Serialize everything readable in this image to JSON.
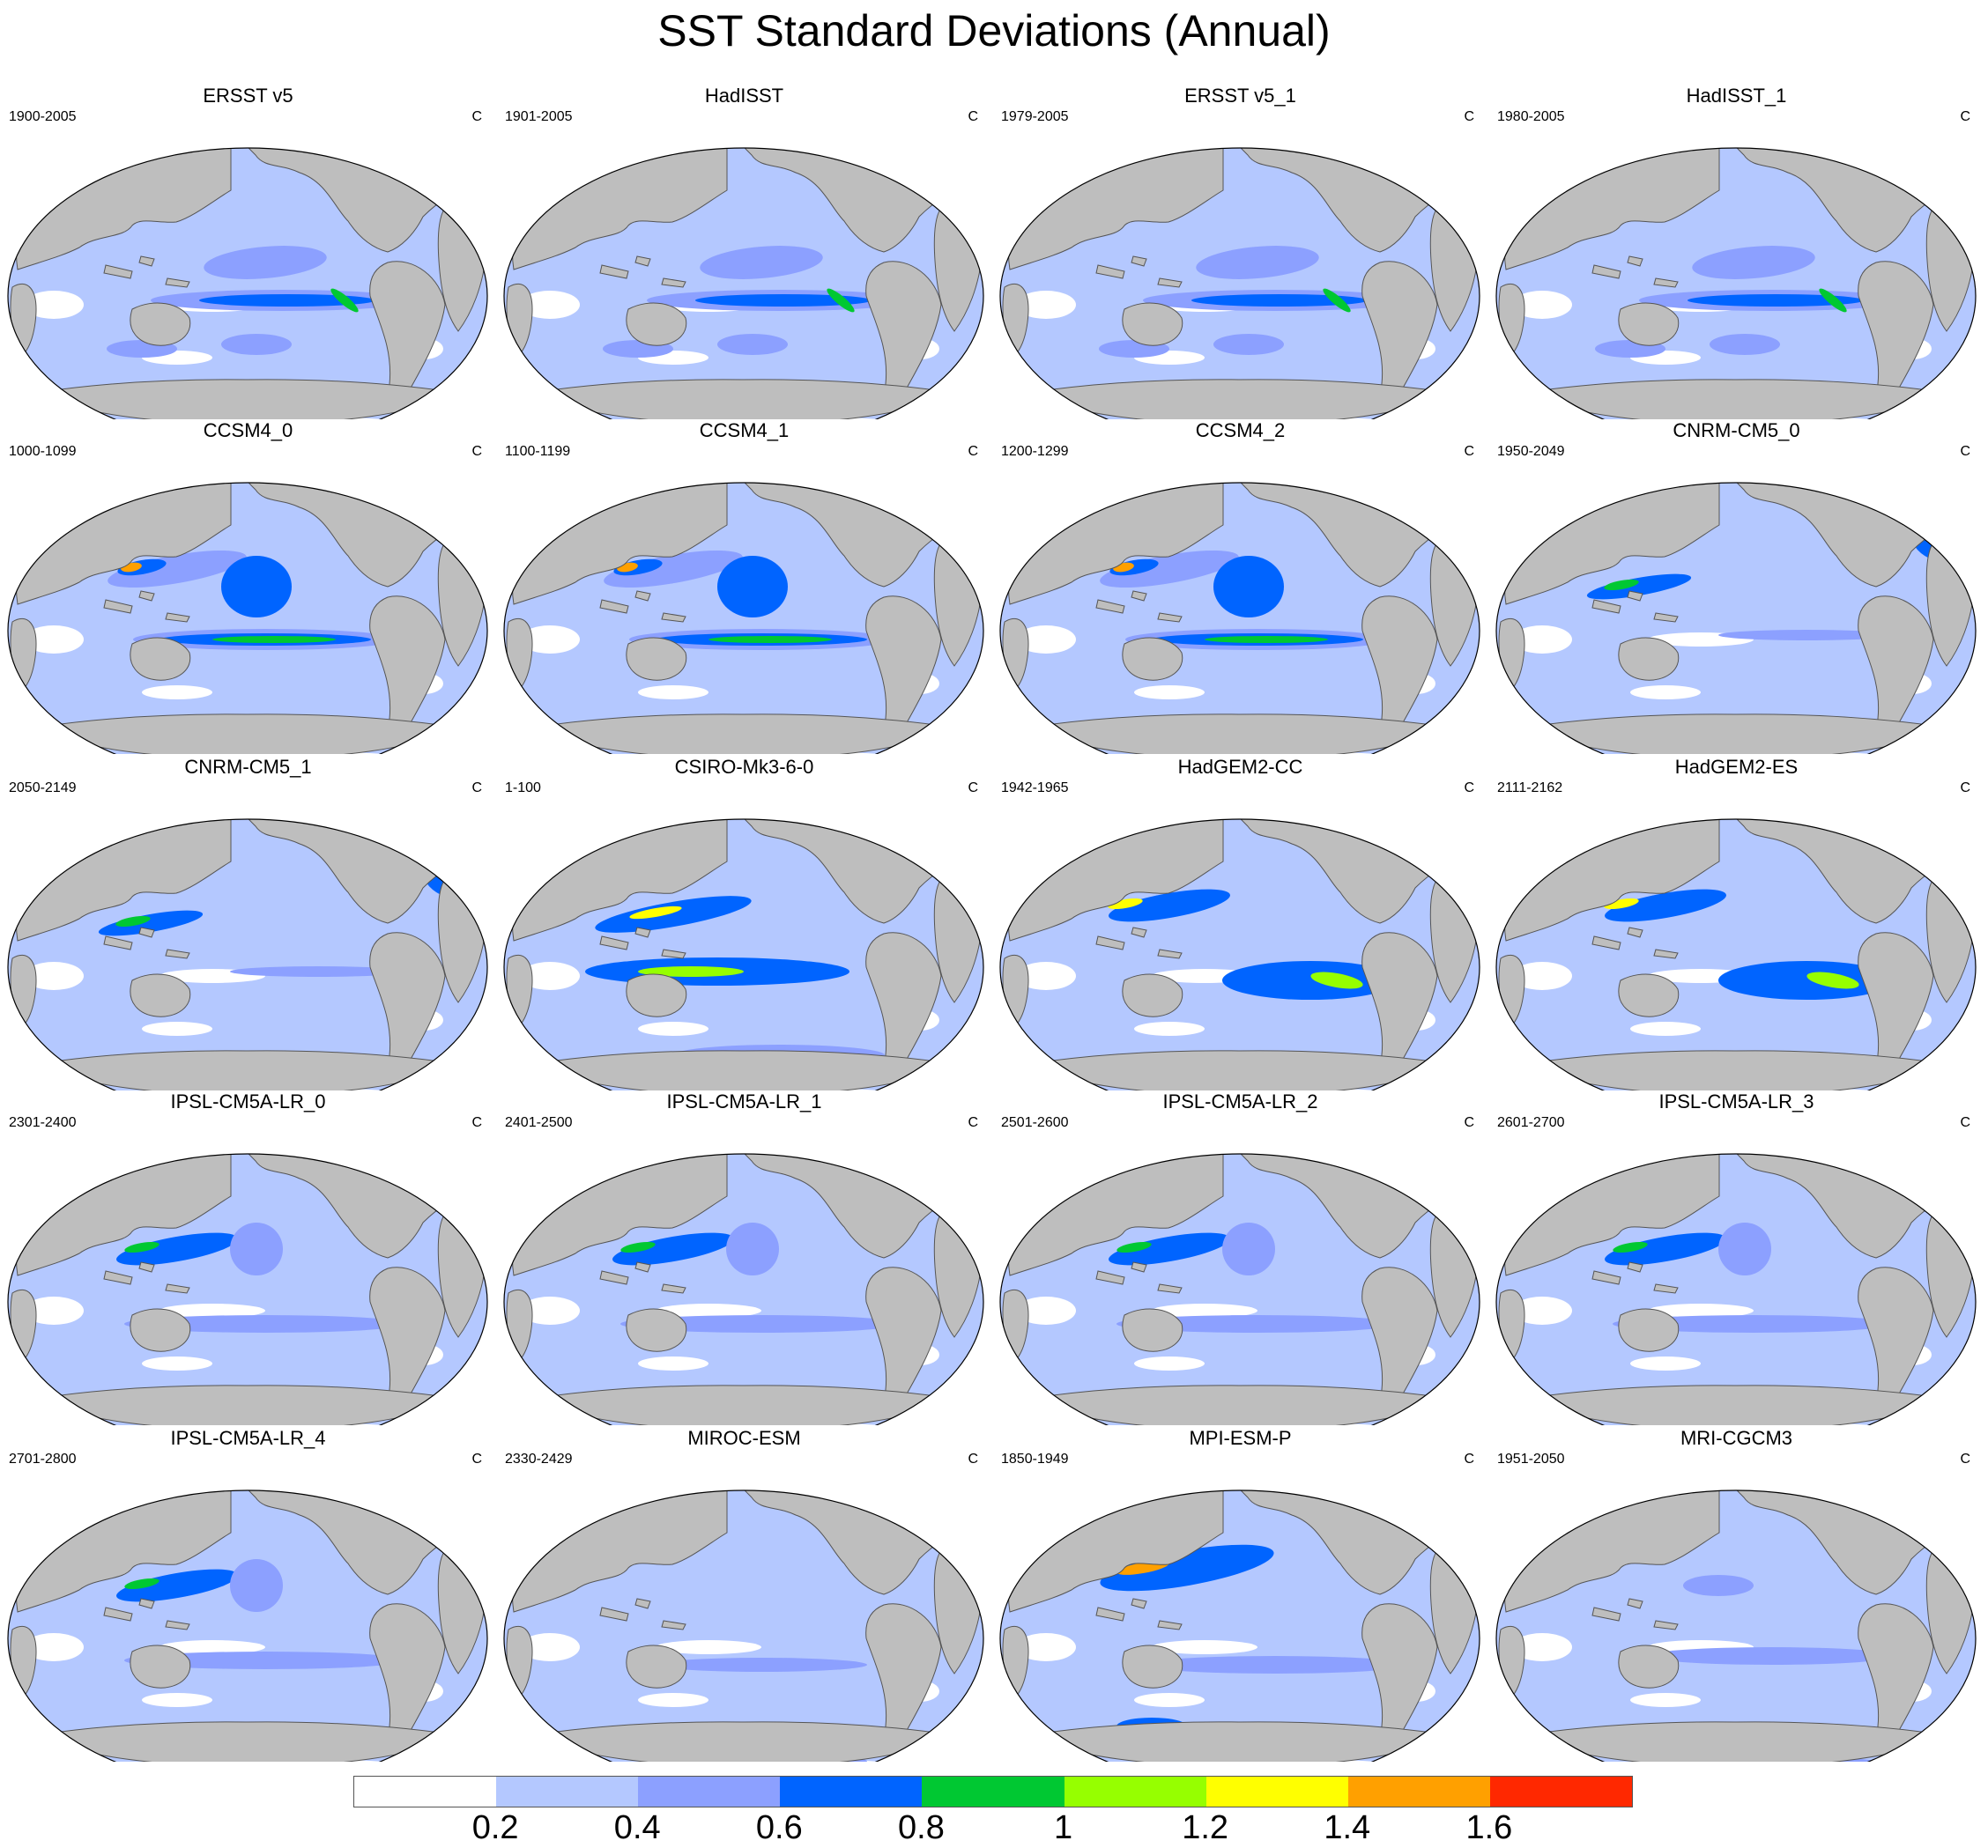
{
  "title": "SST Standard Deviations (Annual)",
  "panels": [
    {
      "title": "ERSST v5",
      "years": "1900-2005",
      "units": "C",
      "pattern": "obs"
    },
    {
      "title": "HadISST",
      "years": "1901-2005",
      "units": "C",
      "pattern": "obs"
    },
    {
      "title": "ERSST v5_1",
      "years": "1979-2005",
      "units": "C",
      "pattern": "obs"
    },
    {
      "title": "HadISST_1",
      "years": "1980-2005",
      "units": "C",
      "pattern": "obs"
    },
    {
      "title": "CCSM4_0",
      "years": "1000-1099",
      "units": "C",
      "pattern": "ccsm"
    },
    {
      "title": "CCSM4_1",
      "years": "1100-1199",
      "units": "C",
      "pattern": "ccsm"
    },
    {
      "title": "CCSM4_2",
      "years": "1200-1299",
      "units": "C",
      "pattern": "ccsm"
    },
    {
      "title": "CNRM-CM5_0",
      "years": "1950-2049",
      "units": "C",
      "pattern": "cnrm"
    },
    {
      "title": "CNRM-CM5_1",
      "years": "2050-2149",
      "units": "C",
      "pattern": "cnrm"
    },
    {
      "title": "CSIRO-Mk3-6-0",
      "years": "1-100",
      "units": "C",
      "pattern": "csiro"
    },
    {
      "title": "HadGEM2-CC",
      "years": "1942-1965",
      "units": "C",
      "pattern": "hadgem"
    },
    {
      "title": "HadGEM2-ES",
      "years": "2111-2162",
      "units": "C",
      "pattern": "hadgem"
    },
    {
      "title": "IPSL-CM5A-LR_0",
      "years": "2301-2400",
      "units": "C",
      "pattern": "ipsl"
    },
    {
      "title": "IPSL-CM5A-LR_1",
      "years": "2401-2500",
      "units": "C",
      "pattern": "ipsl"
    },
    {
      "title": "IPSL-CM5A-LR_2",
      "years": "2501-2600",
      "units": "C",
      "pattern": "ipsl"
    },
    {
      "title": "IPSL-CM5A-LR_3",
      "years": "2601-2700",
      "units": "C",
      "pattern": "ipsl"
    },
    {
      "title": "IPSL-CM5A-LR_4",
      "years": "2701-2800",
      "units": "C",
      "pattern": "ipsl"
    },
    {
      "title": "MIROC-ESM",
      "years": "2330-2429",
      "units": "C",
      "pattern": "miroc"
    },
    {
      "title": "MPI-ESM-P",
      "years": "1850-1949",
      "units": "C",
      "pattern": "mpi"
    },
    {
      "title": "MRI-CGCM3",
      "years": "1951-2050",
      "units": "C",
      "pattern": "mri"
    }
  ],
  "colorbar": {
    "colors": [
      "#ffffff",
      "#b4c8ff",
      "#8ca0ff",
      "#0064ff",
      "#00c832",
      "#96ff00",
      "#ffff00",
      "#ffa000",
      "#ff2800"
    ],
    "labels": [
      "0.2",
      "0.4",
      "0.6",
      "0.8",
      "1",
      "1.2",
      "1.4",
      "1.6"
    ]
  },
  "land_color": "#bebebe"
}
